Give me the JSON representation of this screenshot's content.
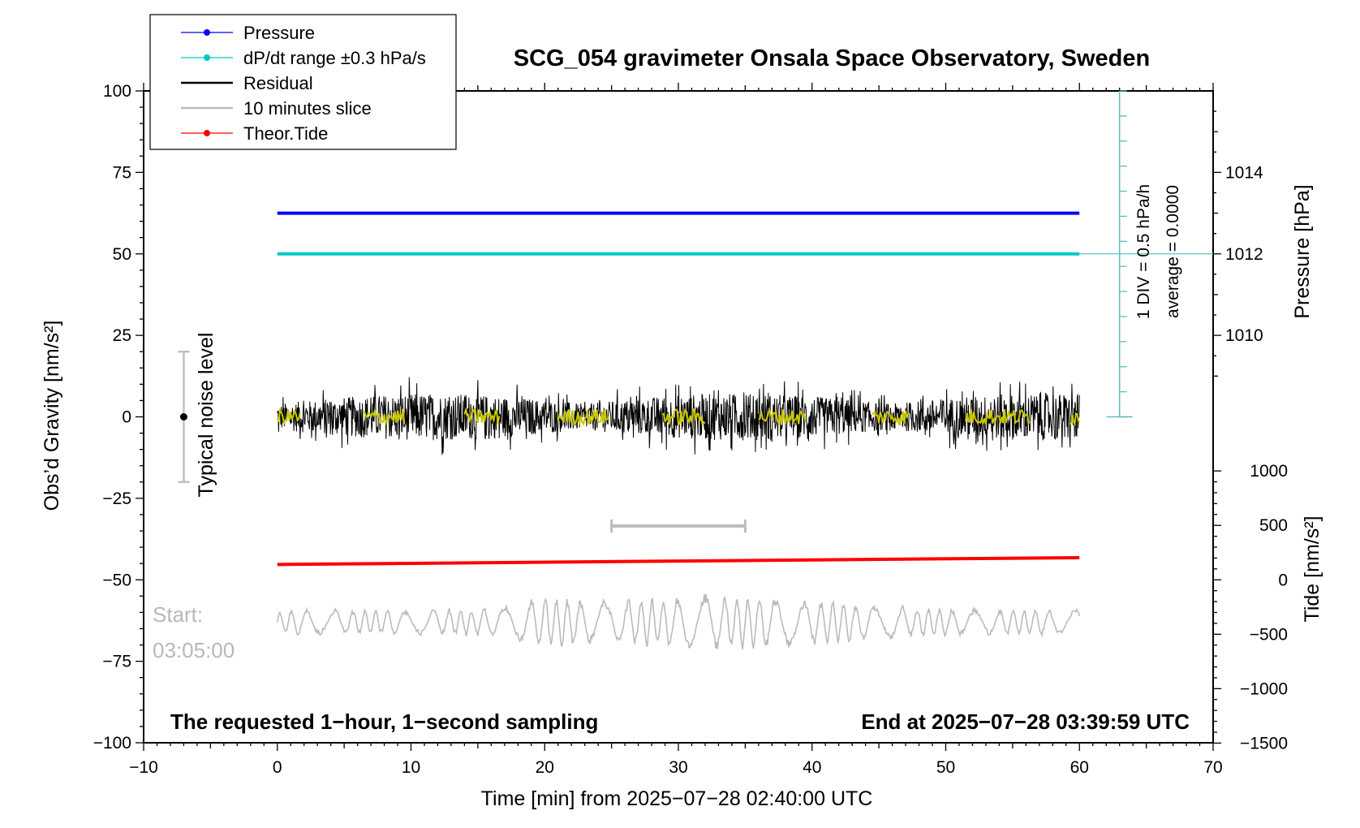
{
  "chart_data": {
    "type": "line",
    "title": "SCG_054 gravimeter Onsala Space Observatory, Sweden",
    "xlabel": "Time [min] from 2025−07−28 02:40:00 UTC",
    "ylabel_left": "Obs’d Gravity [nm/s²]",
    "ylabel_right_pressure": "Pressure [hPa]",
    "ylabel_right_tide": "Tide [nm/s²]",
    "xlim": [
      -10,
      70
    ],
    "ylim": [
      -100,
      100
    ],
    "x_ticks": [
      "−10",
      "0",
      "10",
      "20",
      "30",
      "40",
      "50",
      "60",
      "70"
    ],
    "y_ticks": [
      "100",
      "75",
      "50",
      "25",
      "0",
      "−25",
      "−50",
      "−75",
      "−100"
    ],
    "pressure_ticks": [
      "1014",
      "1012",
      "1010"
    ],
    "tide_ticks": [
      "1000",
      "500",
      "0",
      "−500",
      "−1000",
      "−1500"
    ],
    "legend": {
      "placement": "top-left",
      "entries": [
        {
          "label": "Pressure",
          "color": "#0000ff",
          "marker": true
        },
        {
          "label": "dP/dt range ±0.3 hPa/s",
          "color": "#00c8c8",
          "marker": true
        },
        {
          "label": "Residual",
          "color": "#000000",
          "marker": false
        },
        {
          "label": "10 minutes slice",
          "color": "#bbbbbb",
          "marker": false
        },
        {
          "label": "Theor.Tide",
          "color": "#ff0000",
          "marker": true
        }
      ]
    },
    "series": [
      {
        "name": "Pressure",
        "color": "#0000ff",
        "x": [
          0,
          60
        ],
        "y": [
          62.5,
          62.5
        ]
      },
      {
        "name": "dP/dt range ±0.3 hPa/s",
        "color": "#00c8c8",
        "x": [
          0,
          60
        ],
        "y": [
          50,
          50
        ]
      },
      {
        "name": "Residual",
        "color": "#000000",
        "x_range": [
          0,
          60
        ],
        "center": 0,
        "amplitude": 12
      },
      {
        "name": "Theor.Tide",
        "color": "#ff0000",
        "x": [
          0,
          60
        ],
        "y": [
          -45.3,
          -43.2
        ]
      },
      {
        "name": "10 minutes slice",
        "color": "#bbbbbb",
        "x_range": [
          0,
          60
        ],
        "center": -63,
        "amplitude": 9
      }
    ],
    "slice_marker": {
      "x": [
        25,
        35
      ],
      "y": -33.5
    },
    "noise_bar": {
      "x": -7,
      "y": [
        -20,
        20
      ],
      "label": "Typical noise level"
    },
    "dpdt_scale": {
      "label_div": "1 DIV = 0.5 hPa/h",
      "label_avg": "average = 0.0000",
      "x": 63,
      "y": [
        0,
        100
      ],
      "divisions": 13
    },
    "start_label": "Start:",
    "start_time": "03:05:00",
    "footer_left": "The requested 1−hour, 1−second sampling",
    "footer_right": "End at 2025−07−28 03:39:59 UTC",
    "grid": false
  }
}
